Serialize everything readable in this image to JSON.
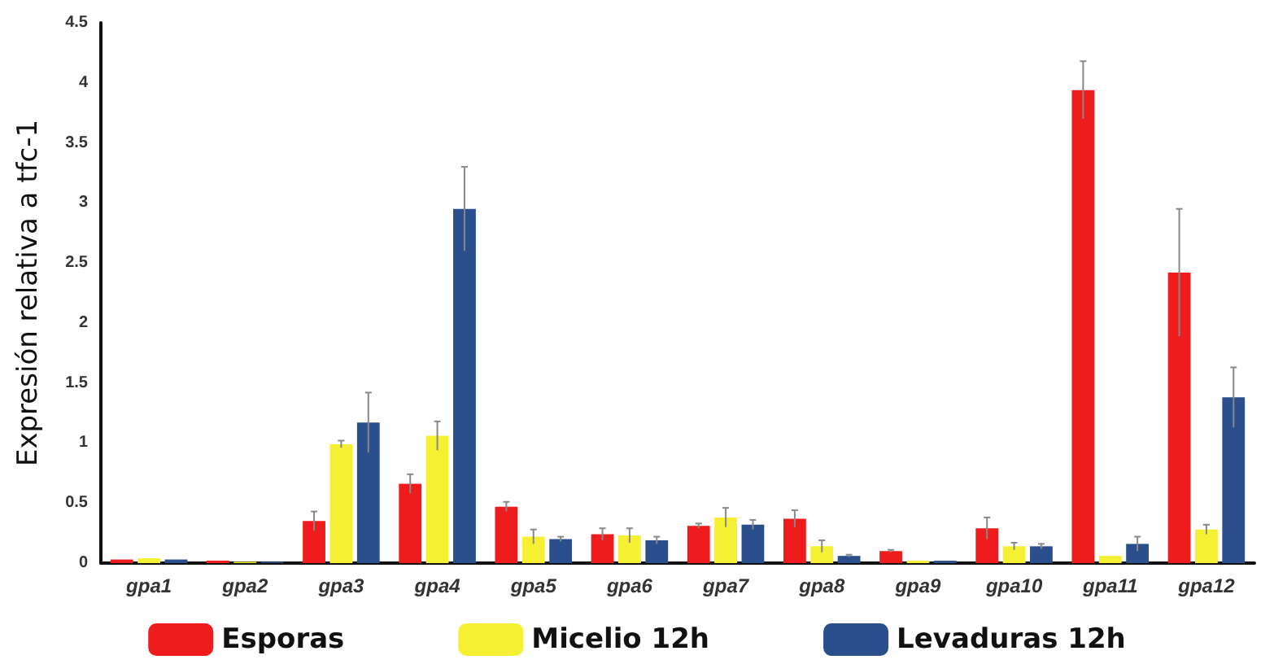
{
  "chart_data": {
    "type": "bar",
    "ylabel": "Expresión relativa a tfc-1",
    "categories": [
      "gpa1",
      "gpa2",
      "gpa3",
      "gpa4",
      "gpa5",
      "gpa6",
      "gpa7",
      "gpa8",
      "gpa9",
      "gpa10",
      "gpa11",
      "gpa12"
    ],
    "series": [
      {
        "name": "Esporas",
        "color": "#ee1c1c",
        "values": [
          0.03,
          0.02,
          0.35,
          0.66,
          0.47,
          0.24,
          0.31,
          0.37,
          0.1,
          0.29,
          3.94,
          2.42
        ],
        "errors": [
          null,
          null,
          0.08,
          0.08,
          0.04,
          0.05,
          0.02,
          0.07,
          0.01,
          0.09,
          0.24,
          0.53
        ]
      },
      {
        "name": "Micelio 12h",
        "color": "#f5f032",
        "values": [
          0.04,
          0.01,
          0.99,
          1.06,
          0.22,
          0.23,
          0.38,
          0.14,
          0.02,
          0.14,
          0.06,
          0.28
        ],
        "errors": [
          null,
          null,
          0.03,
          0.12,
          0.06,
          0.06,
          0.08,
          0.05,
          null,
          0.03,
          null,
          0.04
        ]
      },
      {
        "name": "Levaduras 12h",
        "color": "#2a4f8c",
        "values": [
          0.03,
          0.01,
          1.17,
          2.95,
          0.2,
          0.19,
          0.32,
          0.06,
          0.02,
          0.14,
          0.16,
          1.38
        ],
        "errors": [
          null,
          null,
          0.25,
          0.35,
          0.02,
          0.03,
          0.04,
          0.01,
          null,
          0.02,
          0.06,
          0.25
        ]
      }
    ],
    "ylim": [
      0,
      4.5
    ],
    "yticks": [
      0,
      0.5,
      1,
      1.5,
      2,
      2.5,
      3,
      3.5,
      4,
      4.5
    ],
    "grid": false,
    "legend": "bottom"
  }
}
